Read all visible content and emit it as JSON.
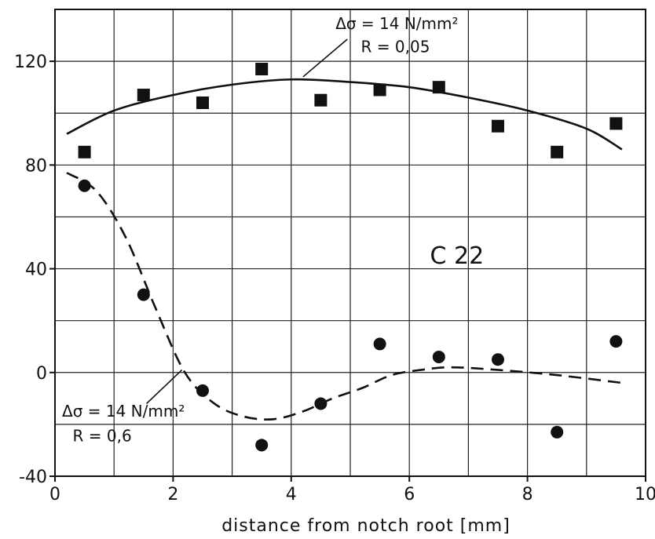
{
  "chart_data": {
    "type": "scatter",
    "title": "",
    "xlabel": "distance from notch root [mm]",
    "ylabel": "",
    "xlim": [
      0,
      10
    ],
    "ylim": [
      -40,
      140
    ],
    "xticks": [
      0,
      2,
      4,
      6,
      8,
      10
    ],
    "yticks": [
      -40,
      0,
      40,
      80,
      120
    ],
    "grid": true,
    "material_label": "C 22",
    "series": [
      {
        "marker": "square",
        "points": [
          {
            "x": 0.5,
            "y": 85
          },
          {
            "x": 1.5,
            "y": 107
          },
          {
            "x": 2.5,
            "y": 104
          },
          {
            "x": 3.5,
            "y": 117
          },
          {
            "x": 4.5,
            "y": 105
          },
          {
            "x": 5.5,
            "y": 109
          },
          {
            "x": 6.5,
            "y": 110
          },
          {
            "x": 7.5,
            "y": 95
          },
          {
            "x": 8.5,
            "y": 85
          },
          {
            "x": 9.5,
            "y": 96
          }
        ],
        "fit_style": "solid",
        "fit": [
          {
            "x": 0.2,
            "y": 92
          },
          {
            "x": 1.0,
            "y": 101
          },
          {
            "x": 2.0,
            "y": 107
          },
          {
            "x": 3.0,
            "y": 111
          },
          {
            "x": 4.0,
            "y": 113
          },
          {
            "x": 5.0,
            "y": 112
          },
          {
            "x": 6.0,
            "y": 110
          },
          {
            "x": 7.0,
            "y": 106
          },
          {
            "x": 8.0,
            "y": 101
          },
          {
            "x": 9.0,
            "y": 94
          },
          {
            "x": 9.6,
            "y": 86
          }
        ],
        "annotation": {
          "line1": "Δσ = 14 N/mm²",
          "line2": "R = 0,05"
        }
      },
      {
        "marker": "circle",
        "points": [
          {
            "x": 0.5,
            "y": 72
          },
          {
            "x": 1.5,
            "y": 30
          },
          {
            "x": 2.5,
            "y": -7
          },
          {
            "x": 3.5,
            "y": -28
          },
          {
            "x": 4.5,
            "y": -12
          },
          {
            "x": 5.5,
            "y": 11
          },
          {
            "x": 6.5,
            "y": 6
          },
          {
            "x": 7.5,
            "y": 5
          },
          {
            "x": 8.5,
            "y": -23
          },
          {
            "x": 9.5,
            "y": 12
          }
        ],
        "fit_style": "dashed",
        "fit": [
          {
            "x": 0.2,
            "y": 77
          },
          {
            "x": 0.7,
            "y": 70
          },
          {
            "x": 1.2,
            "y": 52
          },
          {
            "x": 1.7,
            "y": 25
          },
          {
            "x": 2.2,
            "y": 0
          },
          {
            "x": 2.7,
            "y": -12
          },
          {
            "x": 3.2,
            "y": -17
          },
          {
            "x": 3.7,
            "y": -18
          },
          {
            "x": 4.2,
            "y": -15
          },
          {
            "x": 4.7,
            "y": -10
          },
          {
            "x": 5.2,
            "y": -6
          },
          {
            "x": 5.7,
            "y": -1
          },
          {
            "x": 6.2,
            "y": 1
          },
          {
            "x": 6.7,
            "y": 2
          },
          {
            "x": 7.5,
            "y": 1
          },
          {
            "x": 8.5,
            "y": -1
          },
          {
            "x": 9.6,
            "y": -4
          }
        ],
        "annotation": {
          "line1": "Δσ = 14 N/mm²",
          "line2": "R = 0,6"
        }
      }
    ]
  }
}
